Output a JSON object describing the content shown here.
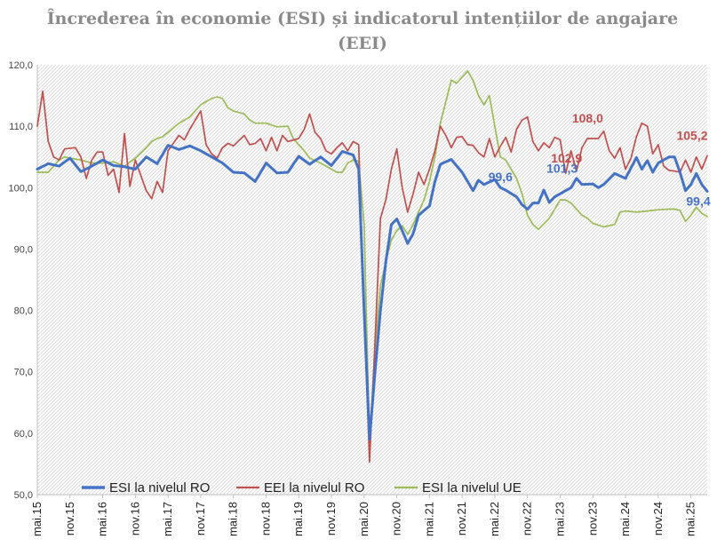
{
  "chart_data": {
    "type": "line",
    "title": "Încrederea în economie (ESI) și indicatorul intențiilor de angajare (EEI)",
    "title_lines": [
      "Încrederea în economie (ESI) și indicatorul intențiilor de angajare",
      "(EEI)"
    ],
    "xlabel": "",
    "ylabel": "",
    "ylim": [
      50,
      120
    ],
    "y_ticks": [
      "50,0",
      "60,0",
      "70,0",
      "80,0",
      "90,0",
      "100,0",
      "110,0",
      "120,0"
    ],
    "x_ticks": [
      "mai.15",
      "nov.15",
      "mai.16",
      "nov.16",
      "mai.17",
      "nov.17",
      "mai.18",
      "nov.18",
      "mai.19",
      "nov.19",
      "mai.20",
      "nov.20",
      "mai.21",
      "nov.21",
      "mai.22",
      "nov.22",
      "mai.23",
      "nov.23",
      "mai.24",
      "nov.24",
      "mai.25"
    ],
    "grid": "diagonal-hatch",
    "legend": "bottom",
    "series": [
      {
        "name": "ESI la nivelul RO",
        "color": "#4472c4",
        "keypoints": [
          [
            0,
            103
          ],
          [
            2,
            103.9
          ],
          [
            4,
            103.5
          ],
          [
            6,
            104.8
          ],
          [
            8,
            102.6
          ],
          [
            10,
            103.5
          ],
          [
            12,
            104.5
          ],
          [
            14,
            103.6
          ],
          [
            16,
            103.4
          ],
          [
            18,
            103
          ],
          [
            20,
            105
          ],
          [
            22,
            103.9
          ],
          [
            24,
            106.9
          ],
          [
            26,
            106.2
          ],
          [
            28,
            106.8
          ],
          [
            30,
            106
          ],
          [
            32,
            105
          ],
          [
            34,
            104
          ],
          [
            36,
            102.5
          ],
          [
            38,
            102.4
          ],
          [
            40,
            101
          ],
          [
            42,
            104
          ],
          [
            44,
            102.4
          ],
          [
            46,
            102.5
          ],
          [
            48,
            105.1
          ],
          [
            50,
            103.8
          ],
          [
            52,
            105
          ],
          [
            54,
            103.6
          ],
          [
            56,
            105.9
          ],
          [
            58,
            105.3
          ],
          [
            59,
            103
          ],
          [
            60,
            80
          ],
          [
            61,
            59
          ],
          [
            62,
            70
          ],
          [
            63,
            80
          ],
          [
            64,
            88
          ],
          [
            65,
            94
          ],
          [
            66,
            94.9
          ],
          [
            67,
            93
          ],
          [
            68,
            90.9
          ],
          [
            69,
            92.5
          ],
          [
            70,
            95.5
          ],
          [
            72,
            97
          ],
          [
            73,
            101
          ],
          [
            74,
            103.8
          ],
          [
            76,
            104.6
          ],
          [
            78,
            102.5
          ],
          [
            80,
            99.5
          ],
          [
            81,
            101.2
          ],
          [
            82,
            100.5
          ],
          [
            84,
            101.3
          ],
          [
            85,
            100
          ],
          [
            86,
            99.6
          ],
          [
            88,
            98.5
          ],
          [
            89,
            97.2
          ],
          [
            90,
            96.5
          ],
          [
            91,
            97.5
          ],
          [
            92,
            97.5
          ],
          [
            93,
            99.6
          ],
          [
            94,
            97.6
          ],
          [
            95,
            98.5
          ],
          [
            96,
            99
          ],
          [
            98,
            100
          ],
          [
            99,
            101.5
          ],
          [
            100,
            100.5
          ],
          [
            102,
            100.6
          ],
          [
            103,
            100
          ],
          [
            104,
            100.5
          ],
          [
            106,
            102.3
          ],
          [
            108,
            101.5
          ],
          [
            110,
            104.9
          ],
          [
            111,
            103
          ],
          [
            112,
            104.4
          ],
          [
            113,
            102.5
          ],
          [
            114,
            104
          ],
          [
            116,
            105
          ],
          [
            117,
            105
          ],
          [
            118,
            102.5
          ],
          [
            119,
            99.5
          ],
          [
            120,
            100.5
          ],
          [
            121,
            102.3
          ],
          [
            122,
            100.5
          ],
          [
            123,
            99.4
          ]
        ]
      },
      {
        "name": "EEI la nivelul RO",
        "color": "#c0504d",
        "keypoints": [
          [
            0,
            110
          ],
          [
            1,
            115.7
          ],
          [
            2,
            107.5
          ],
          [
            3,
            105
          ],
          [
            4,
            104.5
          ],
          [
            5,
            106.3
          ],
          [
            7,
            106.5
          ],
          [
            8,
            105
          ],
          [
            9,
            101.5
          ],
          [
            10,
            104.5
          ],
          [
            11,
            105.8
          ],
          [
            12,
            105.8
          ],
          [
            13,
            102
          ],
          [
            14,
            103
          ],
          [
            15,
            99.2
          ],
          [
            16,
            108.8
          ],
          [
            17,
            100.2
          ],
          [
            18,
            104.5
          ],
          [
            20,
            99.5
          ],
          [
            21,
            98.2
          ],
          [
            22,
            101
          ],
          [
            23,
            99.2
          ],
          [
            24,
            106
          ],
          [
            26,
            108.5
          ],
          [
            27,
            107.8
          ],
          [
            28,
            109.5
          ],
          [
            30,
            112.5
          ],
          [
            31,
            107
          ],
          [
            32,
            105.5
          ],
          [
            33,
            104.8
          ],
          [
            34,
            106.5
          ],
          [
            35,
            107.2
          ],
          [
            36,
            106.8
          ],
          [
            38,
            108.5
          ],
          [
            39,
            107
          ],
          [
            40,
            107.2
          ],
          [
            41,
            108
          ],
          [
            42,
            106
          ],
          [
            43,
            108.2
          ],
          [
            44,
            106
          ],
          [
            45,
            108.5
          ],
          [
            46,
            107.5
          ],
          [
            48,
            108
          ],
          [
            49,
            109.5
          ],
          [
            50,
            112
          ],
          [
            51,
            109
          ],
          [
            52,
            108
          ],
          [
            53,
            106
          ],
          [
            54,
            105.5
          ],
          [
            55,
            106.5
          ],
          [
            56,
            107.3
          ],
          [
            57,
            106
          ],
          [
            58,
            107.5
          ],
          [
            59,
            107
          ],
          [
            60,
            80
          ],
          [
            61,
            55.3
          ],
          [
            62,
            75
          ],
          [
            63,
            95
          ],
          [
            64,
            98
          ],
          [
            65,
            103
          ],
          [
            66,
            106.3
          ],
          [
            67,
            100
          ],
          [
            68,
            96
          ],
          [
            69,
            99
          ],
          [
            70,
            102.5
          ],
          [
            71,
            100.5
          ],
          [
            72,
            103
          ],
          [
            73,
            106
          ],
          [
            74,
            110
          ],
          [
            75,
            108.5
          ],
          [
            76,
            106.5
          ],
          [
            77,
            108.2
          ],
          [
            78,
            108.3
          ],
          [
            79,
            107
          ],
          [
            80,
            106.9
          ],
          [
            81,
            105.7
          ],
          [
            82,
            105
          ],
          [
            83,
            108
          ],
          [
            84,
            105
          ],
          [
            85,
            106.7
          ],
          [
            86,
            108.2
          ],
          [
            87,
            105.8
          ],
          [
            88,
            109.5
          ],
          [
            89,
            111
          ],
          [
            90,
            111.5
          ],
          [
            91,
            107.5
          ],
          [
            92,
            106
          ],
          [
            93,
            107.3
          ],
          [
            94,
            106.5
          ],
          [
            95,
            108.2
          ],
          [
            96,
            107.8
          ],
          [
            97,
            102.3
          ],
          [
            98,
            106
          ],
          [
            99,
            102.7
          ],
          [
            100,
            106.5
          ],
          [
            101,
            108
          ],
          [
            102,
            108
          ],
          [
            103,
            108
          ],
          [
            104,
            109.2
          ],
          [
            105,
            106
          ],
          [
            106,
            104.8
          ],
          [
            107,
            106.5
          ],
          [
            108,
            103
          ],
          [
            109,
            104.8
          ],
          [
            110,
            108.3
          ],
          [
            111,
            110.5
          ],
          [
            112,
            110
          ],
          [
            113,
            105.5
          ],
          [
            114,
            107
          ],
          [
            115,
            103.5
          ],
          [
            116,
            102.8
          ],
          [
            117,
            102.7
          ],
          [
            118,
            102.5
          ],
          [
            119,
            104.5
          ],
          [
            120,
            102.5
          ],
          [
            121,
            105
          ],
          [
            122,
            103
          ],
          [
            123,
            105.2
          ]
        ]
      },
      {
        "name": "ESI la nivelul UE",
        "color": "#9bbb59",
        "keypoints": [
          [
            0,
            102.5
          ],
          [
            2,
            102.5
          ],
          [
            4,
            104.5
          ],
          [
            5,
            105
          ],
          [
            6,
            104.8
          ],
          [
            8,
            104.5
          ],
          [
            10,
            104
          ],
          [
            12,
            104
          ],
          [
            14,
            104.2
          ],
          [
            16,
            103.5
          ],
          [
            18,
            104.8
          ],
          [
            20,
            106.5
          ],
          [
            21,
            107.5
          ],
          [
            22,
            108
          ],
          [
            23,
            108.3
          ],
          [
            24,
            109
          ],
          [
            26,
            110.5
          ],
          [
            28,
            111.5
          ],
          [
            30,
            113.5
          ],
          [
            32,
            114.5
          ],
          [
            33,
            114.8
          ],
          [
            34,
            114.5
          ],
          [
            35,
            113
          ],
          [
            36,
            112.5
          ],
          [
            38,
            112
          ],
          [
            39,
            111
          ],
          [
            40,
            110.5
          ],
          [
            42,
            110.5
          ],
          [
            44,
            109.9
          ],
          [
            46,
            110
          ],
          [
            47,
            108
          ],
          [
            48,
            107
          ],
          [
            49,
            106
          ],
          [
            50,
            104.8
          ],
          [
            52,
            104
          ],
          [
            54,
            103
          ],
          [
            55,
            102.5
          ],
          [
            56,
            102.5
          ],
          [
            57,
            104
          ],
          [
            58,
            104.5
          ],
          [
            59,
            104.3
          ],
          [
            60,
            94
          ],
          [
            61,
            58.5
          ],
          [
            62,
            74
          ],
          [
            63,
            84
          ],
          [
            64,
            88
          ],
          [
            65,
            91.5
          ],
          [
            66,
            93
          ],
          [
            67,
            93.8
          ],
          [
            68,
            92.4
          ],
          [
            69,
            94
          ],
          [
            70,
            96
          ],
          [
            71,
            98
          ],
          [
            72,
            101
          ],
          [
            73,
            105
          ],
          [
            74,
            110.5
          ],
          [
            75,
            114
          ],
          [
            76,
            117.5
          ],
          [
            77,
            117
          ],
          [
            78,
            118
          ],
          [
            79,
            119
          ],
          [
            80,
            117.5
          ],
          [
            81,
            115
          ],
          [
            82,
            113.5
          ],
          [
            83,
            115
          ],
          [
            84,
            110
          ],
          [
            85,
            105
          ],
          [
            86,
            104.5
          ],
          [
            88,
            101.5
          ],
          [
            89,
            99
          ],
          [
            90,
            95.5
          ],
          [
            91,
            94
          ],
          [
            92,
            93.2
          ],
          [
            94,
            95
          ],
          [
            96,
            98
          ],
          [
            97,
            98
          ],
          [
            98,
            97.5
          ],
          [
            100,
            95.5
          ],
          [
            101,
            95
          ],
          [
            102,
            94.2
          ],
          [
            104,
            93.6
          ],
          [
            106,
            94
          ],
          [
            107,
            96
          ],
          [
            108,
            96.2
          ],
          [
            110,
            96
          ],
          [
            112,
            96.2
          ],
          [
            114,
            96.4
          ],
          [
            116,
            96.5
          ],
          [
            117,
            96.5
          ],
          [
            118,
            96.3
          ],
          [
            119,
            94.5
          ],
          [
            120,
            95.5
          ],
          [
            121,
            96.8
          ],
          [
            122,
            95.8
          ],
          [
            123,
            95.3
          ]
        ]
      }
    ],
    "annotations": [
      {
        "text": "99,6",
        "series": "ESI la nivelul RO",
        "x": 87,
        "y": 99.6
      },
      {
        "text": "101,3",
        "series": "ESI la nivelul RO",
        "x": 97,
        "y": 101.3
      },
      {
        "text": "99,4",
        "series": "ESI la nivelul RO",
        "x": 123,
        "y": 99.4
      },
      {
        "text": "108,0",
        "series": "EEI la nivelul RO",
        "x": 103,
        "y": 108.0
      },
      {
        "text": "102,9",
        "series": "EEI la nivelul RO",
        "x": 98,
        "y": 102.9
      },
      {
        "text": "105,2",
        "series": "EEI la nivelul RO",
        "x": 123,
        "y": 105.2
      }
    ]
  }
}
